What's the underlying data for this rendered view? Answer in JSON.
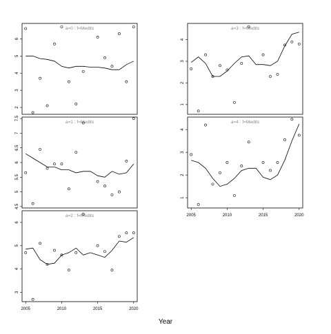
{
  "figure": {
    "xlabel": "Year",
    "xticks": [
      2005,
      2010,
      2015,
      2020
    ]
  },
  "chart_data": [
    {
      "type": "scatter",
      "title": "a=0 : f=Medits",
      "xlim": [
        2004.5,
        2020.5
      ],
      "ylim": [
        1.6,
        6.9
      ],
      "yticks": [
        2,
        3,
        4,
        5,
        6
      ],
      "points": {
        "x": [
          2005,
          2006,
          2007,
          2008,
          2009,
          2010,
          2011,
          2012,
          2013,
          2015,
          2016,
          2017,
          2018,
          2019,
          2020
        ],
        "y": [
          6.6,
          1.7,
          3.7,
          2.1,
          5.7,
          6.7,
          3.5,
          2.2,
          4.1,
          6.1,
          4.9,
          4.4,
          6.3,
          3.5,
          6.7
        ]
      },
      "fit": {
        "x": [
          2005,
          2006,
          2007,
          2008,
          2009,
          2010,
          2011,
          2012,
          2013,
          2014,
          2015,
          2016,
          2017,
          2018,
          2019,
          2020
        ],
        "y": [
          5.0,
          5.0,
          4.85,
          4.8,
          4.7,
          4.4,
          4.3,
          4.4,
          4.4,
          4.35,
          4.35,
          4.3,
          4.2,
          4.2,
          4.5,
          4.7
        ]
      }
    },
    {
      "type": "scatter",
      "title": "a=1 : f=Medits",
      "xlim": [
        2004.5,
        2020.5
      ],
      "ylim": [
        4.45,
        7.55
      ],
      "yticks": [
        4.5,
        5.0,
        5.5,
        6.0,
        6.5,
        7.0,
        7.5
      ],
      "points": {
        "x": [
          2005,
          2006,
          2007,
          2008,
          2009,
          2010,
          2011,
          2012,
          2013,
          2015,
          2016,
          2017,
          2018,
          2019,
          2020
        ],
        "y": [
          5.65,
          4.6,
          6.45,
          5.8,
          5.95,
          5.95,
          5.1,
          6.35,
          7.35,
          5.35,
          5.2,
          4.9,
          5.0,
          6.05,
          7.5
        ]
      },
      "fit": {
        "x": [
          2005,
          2006,
          2007,
          2008,
          2009,
          2010,
          2011,
          2012,
          2013,
          2014,
          2015,
          2016,
          2017,
          2018,
          2019,
          2020
        ],
        "y": [
          6.3,
          6.15,
          6.0,
          5.85,
          5.85,
          5.75,
          5.75,
          5.65,
          5.7,
          5.7,
          5.55,
          5.5,
          5.7,
          5.6,
          5.65,
          5.95
        ]
      }
    },
    {
      "type": "scatter",
      "title": "a=2 : f=Medits",
      "xlim": [
        2004.5,
        2020.5
      ],
      "ylim": [
        2.6,
        6.5
      ],
      "yticks": [
        3,
        4,
        5,
        6
      ],
      "points": {
        "x": [
          2005,
          2006,
          2007,
          2008,
          2009,
          2010,
          2011,
          2012,
          2013,
          2015,
          2016,
          2017,
          2018,
          2019,
          2020
        ],
        "y": [
          4.7,
          2.7,
          5.1,
          4.2,
          4.8,
          4.6,
          3.95,
          4.7,
          6.35,
          5.0,
          4.75,
          3.95,
          5.4,
          5.55,
          5.55
        ]
      },
      "fit": {
        "x": [
          2005,
          2006,
          2007,
          2008,
          2009,
          2010,
          2011,
          2012,
          2013,
          2014,
          2015,
          2016,
          2017,
          2018,
          2019,
          2020
        ],
        "y": [
          4.85,
          4.9,
          4.4,
          4.2,
          4.25,
          4.6,
          4.7,
          4.9,
          4.6,
          4.7,
          4.6,
          4.5,
          4.8,
          5.2,
          5.15,
          5.35
        ]
      }
    },
    {
      "type": "scatter",
      "title": "a=3 : f=Medits",
      "xlim": [
        2004.5,
        2020.5
      ],
      "ylim": [
        0.55,
        4.75
      ],
      "yticks": [
        1,
        2,
        3,
        4
      ],
      "points": {
        "x": [
          2005,
          2006,
          2007,
          2008,
          2009,
          2010,
          2011,
          2012,
          2013,
          2015,
          2016,
          2017,
          2018,
          2019,
          2020
        ],
        "y": [
          2.65,
          0.7,
          3.3,
          2.3,
          2.8,
          2.6,
          1.1,
          2.9,
          4.6,
          3.3,
          2.3,
          2.4,
          3.75,
          3.9,
          3.8
        ]
      },
      "fit": {
        "x": [
          2005,
          2006,
          2007,
          2008,
          2009,
          2010,
          2011,
          2012,
          2013,
          2014,
          2015,
          2016,
          2017,
          2018,
          2019,
          2020
        ],
        "y": [
          2.95,
          3.2,
          2.9,
          2.3,
          2.3,
          2.55,
          2.9,
          3.2,
          3.25,
          2.85,
          2.85,
          2.8,
          3.0,
          3.7,
          4.25,
          4.35
        ]
      }
    },
    {
      "type": "scatter",
      "title": "a=4 : f=Medits",
      "xlim": [
        2004.5,
        2020.5
      ],
      "ylim": [
        0.55,
        4.55
      ],
      "yticks": [
        1,
        2,
        3,
        4
      ],
      "points": {
        "x": [
          2005,
          2006,
          2007,
          2008,
          2009,
          2010,
          2011,
          2012,
          2013,
          2015,
          2016,
          2017,
          2018,
          2019,
          2020
        ],
        "y": [
          2.9,
          0.7,
          4.2,
          1.6,
          2.1,
          2.55,
          1.1,
          2.4,
          3.45,
          2.55,
          2.2,
          2.55,
          3.55,
          4.45,
          3.75
        ]
      },
      "fit": {
        "x": [
          2005,
          2006,
          2007,
          2008,
          2009,
          2010,
          2011,
          2012,
          2013,
          2014,
          2015,
          2016,
          2017,
          2018,
          2019,
          2020
        ],
        "y": [
          2.65,
          2.55,
          2.3,
          1.85,
          1.5,
          1.6,
          1.85,
          2.2,
          2.3,
          2.3,
          1.9,
          1.8,
          2.0,
          2.65,
          3.5,
          4.25
        ]
      }
    }
  ]
}
